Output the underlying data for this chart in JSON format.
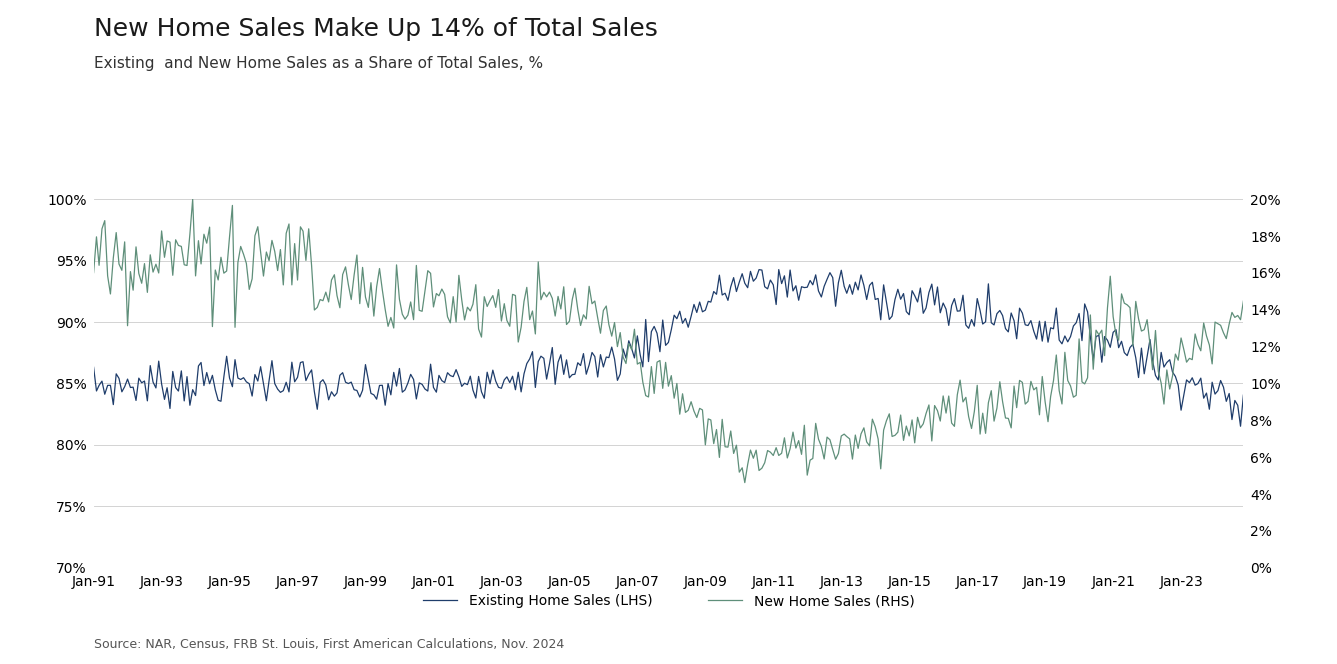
{
  "title": "New Home Sales Make Up 14% of Total Sales",
  "subtitle": "Existing  and New Home Sales as a Share of Total Sales, %",
  "source": "Source: NAR, Census, FRB St. Louis, First American Calculations, Nov. 2024",
  "legend_existing": "Existing Home Sales (LHS)",
  "legend_new": "New Home Sales (RHS)",
  "existing_color": "#1f3d6b",
  "new_color": "#5f8f7a",
  "lhs_ylim": [
    70,
    100
  ],
  "rhs_ylim": [
    0,
    20
  ],
  "lhs_yticks": [
    70,
    75,
    80,
    85,
    90,
    95,
    100
  ],
  "rhs_yticks": [
    0,
    2,
    4,
    6,
    8,
    10,
    12,
    14,
    16,
    18,
    20
  ],
  "background_color": "#ffffff",
  "grid_color": "#cccccc",
  "title_fontsize": 18,
  "subtitle_fontsize": 11,
  "tick_fontsize": 10,
  "source_fontsize": 9
}
